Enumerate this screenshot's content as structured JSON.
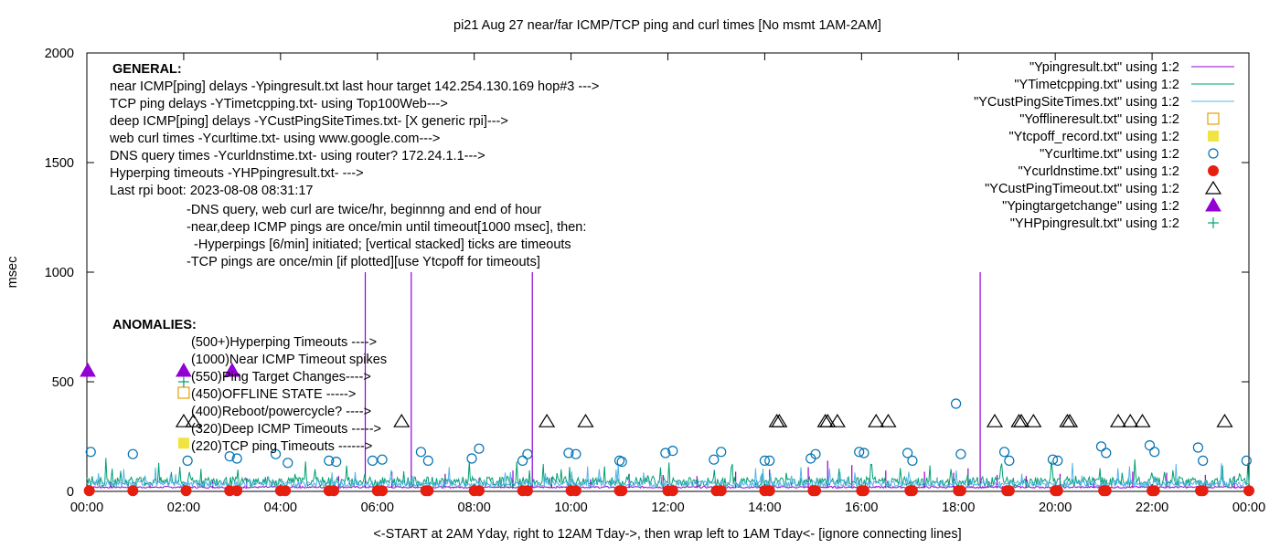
{
  "chart_data": {
    "type": "line",
    "title": "pi21 Aug 27  near/far ICMP/TCP ping and curl times [No msmt 1AM-2AM]",
    "xlabel": "<-START at 2AM Yday, right to 12AM Tday->, then wrap left to 1AM Tday<- [ignore connecting lines]",
    "ylabel": "msec",
    "xlim": [
      0,
      24
    ],
    "ylim": [
      0,
      2000
    ],
    "grid": false,
    "legend_position": "top-right",
    "x_ticks": [
      "00:00",
      "02:00",
      "04:00",
      "06:00",
      "08:00",
      "10:00",
      "12:00",
      "14:00",
      "16:00",
      "18:00",
      "20:00",
      "22:00",
      "00:00"
    ],
    "y_ticks": [
      "0",
      "500",
      "1000",
      "1500",
      "2000"
    ],
    "y_tick_values": [
      0,
      500,
      1000,
      1500,
      2000
    ],
    "notes": {
      "general_header": "GENERAL:",
      "general": [
        "near ICMP[ping] delays -Ypingresult.txt last hour target 142.254.130.169 hop#3 --->",
        "TCP ping delays -YTimetcpping.txt- using Top100Web--->",
        "deep ICMP[ping] delays -YCustPingSiteTimes.txt- [X generic rpi]--->",
        "web curl times -Ycurltime.txt- using www.google.com--->",
        "DNS query times -Ycurldnstime.txt- using router? 172.24.1.1--->",
        "Hyperping timeouts -YHPpingresult.txt- --->",
        "Last rpi boot: 2023-08-08 08:31:17"
      ],
      "general_indented": [
        "-DNS query, web curl are twice/hr, beginnng and end of hour",
        "-near,deep ICMP pings are once/min until timeout[1000 msec], then:",
        "  -Hyperpings [6/min] initiated; [vertical stacked] ticks are timeouts",
        "-TCP pings are once/min [if plotted][use Ytcpoff for timeouts]"
      ],
      "anomalies_header": "ANOMALIES:",
      "anomalies": [
        "(500+)Hyperping Timeouts ---->",
        "(1000)Near ICMP Timeout spikes",
        "(550)Ping Target Changes---->",
        "(450)OFFLINE STATE ----->",
        "(400)Reboot/powercycle? ---->",
        "(320)Deep ICMP Timeouts ----->",
        "(220)TCP ping Timeouts ------>"
      ]
    },
    "series": [
      {
        "name": "\"Ypingresult.txt\" using 1:2",
        "style": "line",
        "color": "#9400d3",
        "baseline": 15,
        "x": [
          5.75,
          6.7,
          9.2,
          18.45,
          0.5,
          1.3,
          2.6,
          3.3,
          4.4,
          5.2,
          6.3,
          7.4,
          8.1,
          8.8,
          9.6,
          10.4,
          11.2,
          11.9,
          12.6,
          13.4,
          14.1,
          14.9,
          15.3,
          15.8,
          16.5,
          17.3,
          17.9,
          18.2,
          18.8,
          19.4,
          20.1,
          20.8,
          21.6,
          22.3,
          23.1,
          23.7
        ],
        "y": [
          1000,
          1000,
          1000,
          1000,
          45,
          35,
          50,
          60,
          40,
          70,
          90,
          80,
          60,
          95,
          65,
          55,
          80,
          75,
          70,
          90,
          100,
          110,
          140,
          120,
          95,
          90,
          85,
          105,
          75,
          70,
          80,
          60,
          90,
          85,
          75,
          70
        ]
      },
      {
        "name": "\"YTimetcpping.txt\" using 1:2",
        "style": "line",
        "color": "#009e73",
        "baseline": 35,
        "amplitude": 45
      },
      {
        "name": "\"YCustPingSiteTimes.txt\" using 1:2",
        "style": "line",
        "color": "#56b4e9",
        "baseline": 28,
        "amplitude": 30
      },
      {
        "name": "\"Yofflineresult.txt\" using 1:2",
        "style": "open-square",
        "color": "#e69f00",
        "x": [
          2.0
        ],
        "y": [
          450
        ]
      },
      {
        "name": "\"Ytcpoff_record.txt\" using 1:2",
        "style": "filled-square",
        "color": "#f0e442",
        "x": [
          2.0
        ],
        "y": [
          220
        ]
      },
      {
        "name": "\"Ycurltime.txt\" using 1:2",
        "style": "open-circle",
        "color": "#0072b2",
        "x": [
          0.08,
          0.95,
          2.08,
          2.95,
          3.1,
          3.9,
          4.15,
          5.0,
          5.15,
          5.9,
          6.1,
          6.9,
          7.05,
          7.95,
          8.1,
          9.0,
          9.1,
          9.95,
          10.1,
          11.0,
          11.05,
          11.95,
          12.1,
          12.95,
          13.1,
          14.0,
          14.1,
          14.95,
          15.05,
          15.95,
          16.05,
          16.95,
          17.05,
          17.95,
          18.05,
          18.95,
          19.05,
          19.95,
          20.05,
          20.95,
          21.05,
          21.95,
          22.05,
          22.95,
          23.05,
          23.95
        ],
        "y": [
          180,
          170,
          140,
          160,
          150,
          170,
          130,
          140,
          135,
          140,
          145,
          180,
          140,
          150,
          195,
          140,
          170,
          175,
          170,
          140,
          135,
          175,
          185,
          145,
          180,
          140,
          140,
          150,
          170,
          180,
          175,
          175,
          140,
          400,
          170,
          180,
          140,
          145,
          140,
          205,
          175,
          210,
          180,
          200,
          140,
          140
        ]
      },
      {
        "name": "\"Ycurldnstime.txt\" using 1:2",
        "style": "filled-circle",
        "color": "#e51e10",
        "x": [
          0.05,
          0.95,
          2.05,
          2.95,
          3.1,
          4.0,
          4.1,
          5.0,
          5.1,
          6.0,
          6.1,
          7.0,
          7.05,
          8.0,
          8.1,
          9.0,
          9.1,
          10.0,
          10.1,
          11.0,
          11.05,
          12.0,
          12.1,
          13.0,
          13.1,
          14.0,
          14.1,
          15.0,
          15.05,
          16.0,
          16.05,
          17.0,
          17.05,
          18.0,
          18.05,
          19.0,
          19.05,
          20.0,
          20.05,
          21.0,
          21.05,
          22.0,
          22.05,
          23.0,
          23.05,
          24.0
        ],
        "y": [
          3,
          3,
          3,
          3,
          3,
          3,
          3,
          3,
          3,
          3,
          3,
          3,
          3,
          3,
          3,
          3,
          3,
          3,
          3,
          3,
          3,
          3,
          3,
          3,
          3,
          3,
          3,
          3,
          3,
          3,
          3,
          3,
          3,
          3,
          3,
          3,
          3,
          3,
          3,
          3,
          3,
          3,
          3,
          3,
          3,
          3
        ]
      },
      {
        "name": "\"YCustPingTimeout.txt\" using 1:2",
        "style": "open-triangle",
        "color": "#000000",
        "x": [
          2.0,
          2.2,
          6.5,
          9.5,
          10.3,
          14.25,
          14.3,
          15.25,
          15.3,
          15.5,
          16.3,
          16.55,
          18.75,
          19.25,
          19.3,
          19.55,
          20.25,
          20.3,
          21.3,
          21.55,
          21.8,
          23.5
        ],
        "y": [
          320,
          320,
          320,
          320,
          320,
          320,
          320,
          320,
          320,
          320,
          320,
          320,
          320,
          320,
          320,
          320,
          320,
          320,
          320,
          320,
          320,
          320
        ]
      },
      {
        "name": "\"Ypingtargetchange\" using 1:2",
        "style": "filled-triangle",
        "color": "#9400d3",
        "x": [
          0.02,
          2.0,
          3.0
        ],
        "y": [
          550,
          550,
          550
        ]
      },
      {
        "name": "\"YHPpingresult.txt\" using 1:2",
        "style": "plus",
        "color": "#009e73",
        "x": [
          2.0
        ],
        "y": [
          500
        ]
      }
    ]
  }
}
